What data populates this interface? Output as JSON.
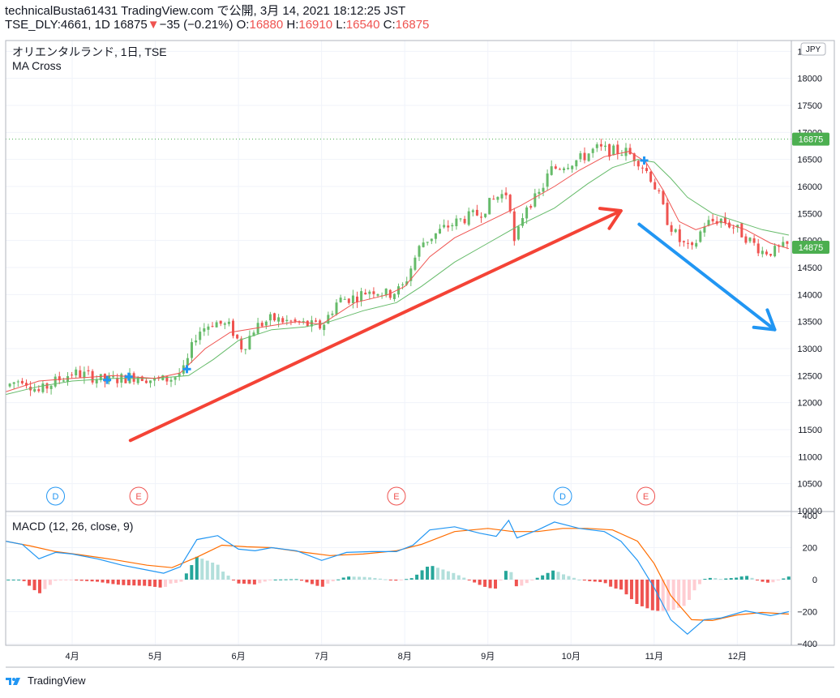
{
  "header": {
    "line1": "technicalBusta61431 TradingView.com で公開, 3月 14, 2021 18:12:25 JST",
    "symbol": "TSE_DLY:4661, 1D",
    "last": "16875",
    "change": "−35 (−0.21%)",
    "o_label": "O:",
    "o_val": "16880",
    "h_label": "H:",
    "h_val": "16910",
    "l_label": "L:",
    "l_val": "16540",
    "c_label": "C:",
    "c_val": "16875"
  },
  "legend": {
    "title": "オリエンタルランド, 1日, TSE",
    "indicator": "MA Cross",
    "macd": "MACD (12, 26, close, 9)"
  },
  "currency": "JPY",
  "footer": {
    "brand": "TradingView"
  },
  "colors": {
    "up": "#26a69a",
    "down": "#ef5350",
    "candle_up": "#66bb6a",
    "ma_fast": "#ef5350",
    "ma_slow": "#66bb6a",
    "macd": "#2196f3",
    "signal": "#ff6d00",
    "arrow_up": "#f44336",
    "arrow_down": "#2196f3",
    "price_label": "#4caf50"
  },
  "price_labels": [
    {
      "value": 16875,
      "text": "16875"
    },
    {
      "value": 14875,
      "text": "14875"
    }
  ],
  "event_markers": [
    {
      "month_pos": 3.8,
      "letter": "D",
      "type": "dividend"
    },
    {
      "month_pos": 4.8,
      "letter": "E",
      "type": "earnings"
    },
    {
      "month_pos": 7.9,
      "letter": "E",
      "type": "earnings"
    },
    {
      "month_pos": 9.9,
      "letter": "D",
      "type": "dividend"
    },
    {
      "month_pos": 10.9,
      "letter": "E",
      "type": "earnings"
    }
  ],
  "chart_data": {
    "type": "candlestick",
    "price_axis": {
      "ticks": [
        10000,
        10500,
        11000,
        11500,
        12000,
        12500,
        13000,
        13500,
        14000,
        14500,
        15000,
        15500,
        16000,
        16500,
        17000,
        17500,
        18000,
        18500
      ],
      "range": [
        10000,
        18700
      ]
    },
    "macd_axis": {
      "ticks": [
        400,
        200,
        0,
        -200,
        -400
      ],
      "range": [
        -410,
        420
      ]
    },
    "x_axis": {
      "labels": [
        "4月",
        "5月",
        "6月",
        "7月",
        "8月",
        "9月",
        "10月",
        "11月",
        "12月"
      ],
      "label_month_pos": [
        4,
        5,
        6,
        7,
        8,
        9,
        10,
        11,
        12
      ],
      "range_month_pos": [
        3.2,
        12.65
      ]
    },
    "price_path": [
      [
        3.2,
        12300
      ],
      [
        3.4,
        12450
      ],
      [
        3.6,
        12200
      ],
      [
        3.8,
        12400
      ],
      [
        4.0,
        12550
      ],
      [
        4.2,
        12500
      ],
      [
        4.4,
        12400
      ],
      [
        4.6,
        12450
      ],
      [
        4.8,
        12500
      ],
      [
        5.0,
        12400
      ],
      [
        5.2,
        12450
      ],
      [
        5.35,
        12600
      ],
      [
        5.5,
        13300
      ],
      [
        5.7,
        13500
      ],
      [
        5.9,
        13400
      ],
      [
        6.05,
        13000
      ],
      [
        6.2,
        13400
      ],
      [
        6.4,
        13550
      ],
      [
        6.6,
        13500
      ],
      [
        6.8,
        13450
      ],
      [
        7.0,
        13400
      ],
      [
        7.2,
        13900
      ],
      [
        7.4,
        13950
      ],
      [
        7.6,
        14100
      ],
      [
        7.8,
        14000
      ],
      [
        7.95,
        14100
      ],
      [
        8.0,
        14200
      ],
      [
        8.1,
        14600
      ],
      [
        8.2,
        14950
      ],
      [
        8.35,
        15100
      ],
      [
        8.5,
        15250
      ],
      [
        8.7,
        15400
      ],
      [
        8.9,
        15500
      ],
      [
        9.1,
        15800
      ],
      [
        9.25,
        15900
      ],
      [
        9.32,
        14900
      ],
      [
        9.45,
        15650
      ],
      [
        9.6,
        15800
      ],
      [
        9.75,
        16300
      ],
      [
        9.9,
        16400
      ],
      [
        10.1,
        16500
      ],
      [
        10.3,
        16700
      ],
      [
        10.5,
        16650
      ],
      [
        10.65,
        16650
      ],
      [
        10.8,
        16500
      ],
      [
        10.95,
        16200
      ],
      [
        11.05,
        15850
      ],
      [
        11.15,
        15400
      ],
      [
        11.3,
        15000
      ],
      [
        11.45,
        14800
      ],
      [
        11.6,
        15300
      ],
      [
        11.8,
        15400
      ],
      [
        12.0,
        15200
      ],
      [
        12.15,
        15000
      ],
      [
        12.3,
        14800
      ],
      [
        12.45,
        14800
      ],
      [
        12.6,
        14900
      ]
    ],
    "ma_fast_path": [
      [
        3.2,
        12200
      ],
      [
        3.6,
        12400
      ],
      [
        4.0,
        12450
      ],
      [
        4.5,
        12500
      ],
      [
        5.0,
        12450
      ],
      [
        5.3,
        12550
      ],
      [
        5.6,
        13000
      ],
      [
        5.9,
        13300
      ],
      [
        6.3,
        13400
      ],
      [
        6.7,
        13500
      ],
      [
        7.0,
        13450
      ],
      [
        7.4,
        13850
      ],
      [
        7.8,
        14000
      ],
      [
        8.0,
        14150
      ],
      [
        8.3,
        14700
      ],
      [
        8.6,
        15050
      ],
      [
        9.0,
        15350
      ],
      [
        9.4,
        15650
      ],
      [
        9.8,
        16000
      ],
      [
        10.1,
        16300
      ],
      [
        10.4,
        16550
      ],
      [
        10.7,
        16650
      ],
      [
        10.9,
        16450
      ],
      [
        11.1,
        15950
      ],
      [
        11.3,
        15350
      ],
      [
        11.5,
        15200
      ],
      [
        11.8,
        15350
      ],
      [
        12.1,
        15200
      ],
      [
        12.4,
        14950
      ],
      [
        12.62,
        14850
      ]
    ],
    "ma_slow_path": [
      [
        3.2,
        12150
      ],
      [
        3.6,
        12300
      ],
      [
        4.0,
        12400
      ],
      [
        4.5,
        12450
      ],
      [
        5.0,
        12450
      ],
      [
        5.4,
        12500
      ],
      [
        5.7,
        12800
      ],
      [
        6.0,
        13150
      ],
      [
        6.4,
        13350
      ],
      [
        6.8,
        13400
      ],
      [
        7.1,
        13500
      ],
      [
        7.5,
        13700
      ],
      [
        7.9,
        13850
      ],
      [
        8.2,
        14150
      ],
      [
        8.6,
        14600
      ],
      [
        9.0,
        14950
      ],
      [
        9.4,
        15300
      ],
      [
        9.8,
        15600
      ],
      [
        10.2,
        16050
      ],
      [
        10.5,
        16350
      ],
      [
        10.8,
        16500
      ],
      [
        11.0,
        16450
      ],
      [
        11.2,
        16150
      ],
      [
        11.4,
        15800
      ],
      [
        11.7,
        15500
      ],
      [
        12.0,
        15350
      ],
      [
        12.3,
        15200
      ],
      [
        12.62,
        15100
      ]
    ],
    "macd_path": [
      [
        3.2,
        240
      ],
      [
        3.4,
        220
      ],
      [
        3.6,
        130
      ],
      [
        3.8,
        170
      ],
      [
        4.0,
        160
      ],
      [
        4.3,
        130
      ],
      [
        4.6,
        90
      ],
      [
        4.9,
        60
      ],
      [
        5.1,
        40
      ],
      [
        5.3,
        80
      ],
      [
        5.5,
        250
      ],
      [
        5.75,
        275
      ],
      [
        6.0,
        190
      ],
      [
        6.2,
        180
      ],
      [
        6.4,
        200
      ],
      [
        6.7,
        180
      ],
      [
        7.0,
        120
      ],
      [
        7.3,
        170
      ],
      [
        7.6,
        175
      ],
      [
        7.9,
        175
      ],
      [
        8.1,
        215
      ],
      [
        8.3,
        310
      ],
      [
        8.6,
        330
      ],
      [
        8.9,
        290
      ],
      [
        9.1,
        270
      ],
      [
        9.25,
        370
      ],
      [
        9.35,
        260
      ],
      [
        9.6,
        310
      ],
      [
        9.8,
        360
      ],
      [
        10.1,
        320
      ],
      [
        10.4,
        300
      ],
      [
        10.6,
        240
      ],
      [
        10.8,
        120
      ],
      [
        11.0,
        -50
      ],
      [
        11.2,
        -250
      ],
      [
        11.4,
        -340
      ],
      [
        11.6,
        -250
      ],
      [
        11.8,
        -240
      ],
      [
        12.1,
        -195
      ],
      [
        12.4,
        -225
      ],
      [
        12.62,
        -200
      ]
    ],
    "signal_path": [
      [
        3.2,
        240
      ],
      [
        3.5,
        210
      ],
      [
        3.8,
        175
      ],
      [
        4.1,
        155
      ],
      [
        4.5,
        125
      ],
      [
        4.9,
        90
      ],
      [
        5.2,
        75
      ],
      [
        5.5,
        140
      ],
      [
        5.8,
        215
      ],
      [
        6.1,
        205
      ],
      [
        6.4,
        200
      ],
      [
        6.8,
        170
      ],
      [
        7.1,
        150
      ],
      [
        7.5,
        160
      ],
      [
        7.9,
        180
      ],
      [
        8.2,
        220
      ],
      [
        8.6,
        300
      ],
      [
        9.0,
        320
      ],
      [
        9.3,
        300
      ],
      [
        9.6,
        300
      ],
      [
        9.9,
        320
      ],
      [
        10.2,
        320
      ],
      [
        10.5,
        310
      ],
      [
        10.8,
        240
      ],
      [
        11.0,
        100
      ],
      [
        11.2,
        -100
      ],
      [
        11.45,
        -250
      ],
      [
        11.7,
        -255
      ],
      [
        12.0,
        -220
      ],
      [
        12.3,
        -205
      ],
      [
        12.62,
        -215
      ]
    ],
    "cross_markers": [
      {
        "month_pos": 4.42,
        "price": 12420
      },
      {
        "month_pos": 4.68,
        "price": 12480
      },
      {
        "month_pos": 5.38,
        "price": 12620
      },
      {
        "month_pos": 10.88,
        "price": 16480
      }
    ],
    "annotations": [
      {
        "type": "arrow",
        "color": "red",
        "from": [
          4.7,
          11300
        ],
        "to": [
          10.6,
          15550
        ]
      },
      {
        "type": "arrow",
        "color": "blue",
        "from": [
          10.82,
          15300
        ],
        "to": [
          12.45,
          13350
        ]
      }
    ],
    "current_price_line": 16875
  }
}
